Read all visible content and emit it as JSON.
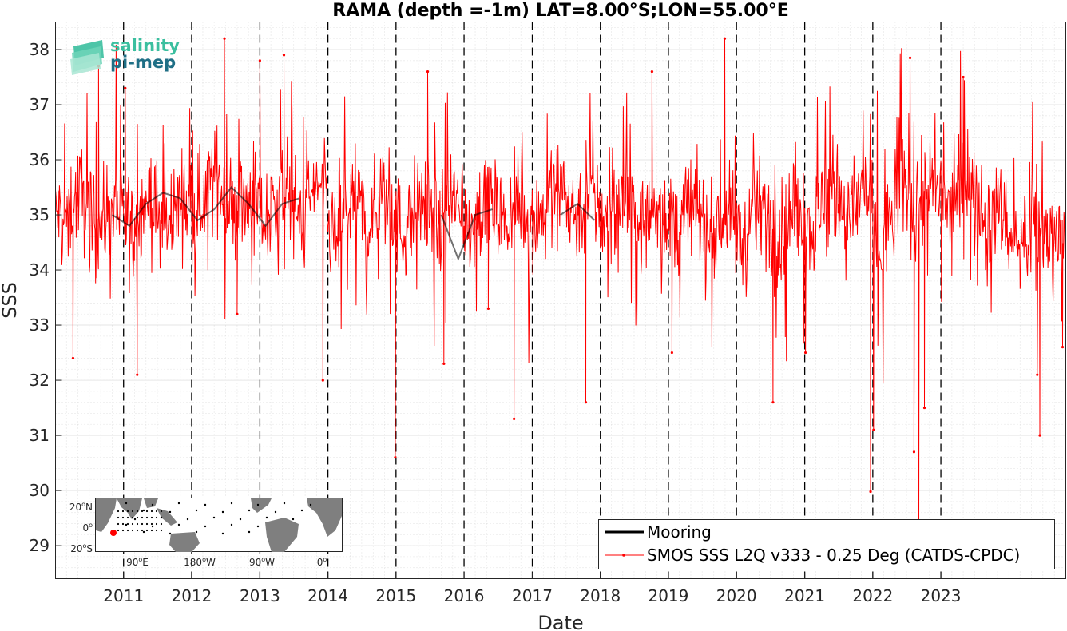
{
  "chart_data": {
    "type": "line",
    "title": "RAMA (depth =-1m) LAT=8.00°S;LON=55.00°E",
    "xlabel": "Date",
    "ylabel": "SSS",
    "xlim": [
      "2010-01-01",
      "2024-11-01"
    ],
    "ylim": [
      28.4,
      38.5
    ],
    "x_tick_labels": [
      "2011",
      "2012",
      "2013",
      "2014",
      "2015",
      "2016",
      "2017",
      "2018",
      "2019",
      "2020",
      "2021",
      "2022",
      "2023"
    ],
    "y_tick_labels": [
      "29",
      "30",
      "31",
      "32",
      "33",
      "34",
      "35",
      "36",
      "37",
      "38"
    ],
    "year_boundaries_dashed": true,
    "grid": "minor dotted",
    "legend_position": "bottom-right",
    "series": [
      {
        "name": "Mooring",
        "color": "#000000",
        "points": [
          [
            "2010-11-01",
            35.0
          ],
          [
            "2011-02-01",
            34.8
          ],
          [
            "2011-05-01",
            35.2
          ],
          [
            "2011-08-01",
            35.4
          ],
          [
            "2011-11-01",
            35.3
          ],
          [
            "2012-02-01",
            34.9
          ],
          [
            "2012-05-01",
            35.1
          ],
          [
            "2012-08-01",
            35.5
          ],
          [
            "2012-11-01",
            35.2
          ],
          [
            "2013-02-01",
            34.8
          ],
          [
            "2013-05-01",
            35.2
          ],
          [
            "2013-08-01",
            35.3
          ],
          [
            "2015-09-01",
            35.0
          ],
          [
            "2015-12-01",
            34.2
          ],
          [
            "2016-03-01",
            35.0
          ],
          [
            "2016-06-01",
            35.1
          ],
          [
            "2017-06-01",
            35.0
          ],
          [
            "2017-09-01",
            35.2
          ],
          [
            "2017-12-01",
            34.9
          ]
        ]
      },
      {
        "name": "SMOS SSS L2Q v333 - 0.25 Deg (CATDS-CPDC)",
        "color": "#ff0000",
        "marker": "dot",
        "monthly_mean": [
          {
            "year": 2010,
            "values": [
              35.0,
              34.9,
              35.1,
              35.3,
              35.4,
              35.2,
              34.9,
              34.8,
              34.9,
              35.1,
              35.2,
              35.0
            ]
          },
          {
            "year": 2011,
            "values": [
              34.8,
              34.7,
              35.0,
              35.2,
              35.3,
              35.1,
              34.9,
              34.8,
              35.0,
              35.2,
              35.3,
              35.1
            ]
          },
          {
            "year": 2012,
            "values": [
              35.0,
              35.2,
              35.4,
              35.6,
              35.7,
              35.5,
              35.2,
              35.0,
              35.1,
              35.3,
              35.4,
              35.2
            ]
          },
          {
            "year": 2013,
            "values": [
              34.9,
              35.0,
              35.2,
              35.4,
              35.5,
              35.4,
              35.1,
              35.0,
              35.2,
              35.4,
              35.5,
              35.3
            ]
          },
          {
            "year": 2014,
            "values": [
              34.8,
              34.6,
              34.9,
              35.1,
              35.3,
              35.2,
              35.0,
              34.9,
              35.0,
              35.2,
              35.2,
              35.0
            ]
          },
          {
            "year": 2015,
            "values": [
              34.8,
              34.7,
              34.9,
              35.1,
              35.3,
              35.2,
              35.0,
              34.8,
              35.0,
              35.1,
              35.2,
              35.0
            ]
          },
          {
            "year": 2016,
            "values": [
              34.9,
              34.8,
              35.0,
              35.2,
              35.3,
              35.2,
              35.0,
              34.9,
              35.0,
              35.1,
              35.2,
              35.0
            ]
          },
          {
            "year": 2017,
            "values": [
              34.9,
              35.0,
              35.2,
              35.5,
              35.6,
              35.4,
              35.2,
              35.0,
              35.1,
              35.2,
              35.3,
              35.1
            ]
          },
          {
            "year": 2018,
            "values": [
              34.9,
              34.8,
              35.0,
              35.2,
              35.3,
              35.1,
              34.9,
              34.8,
              35.0,
              35.1,
              35.2,
              35.0
            ]
          },
          {
            "year": 2019,
            "values": [
              34.8,
              34.7,
              34.9,
              35.1,
              35.2,
              35.0,
              34.8,
              34.7,
              34.8,
              34.9,
              35.0,
              34.9
            ]
          },
          {
            "year": 2020,
            "values": [
              34.6,
              34.5,
              34.8,
              35.0,
              35.1,
              35.0,
              34.8,
              34.6,
              34.8,
              35.0,
              35.0,
              34.8
            ]
          },
          {
            "year": 2021,
            "values": [
              34.8,
              34.7,
              35.0,
              35.3,
              35.5,
              35.4,
              35.2,
              35.0,
              35.1,
              35.3,
              35.4,
              35.2
            ]
          },
          {
            "year": 2022,
            "values": [
              34.5,
              34.3,
              34.7,
              35.1,
              35.4,
              35.5,
              35.3,
              35.1,
              35.2,
              35.4,
              35.5,
              35.3
            ]
          },
          {
            "year": 2023,
            "values": [
              35.2,
              35.1,
              35.3,
              35.5,
              35.6,
              35.4,
              35.1,
              34.9,
              34.9,
              35.0,
              35.1,
              34.9
            ]
          },
          {
            "year": 2024,
            "values": [
              34.6,
              34.4,
              34.5,
              34.7,
              34.9,
              34.8,
              34.6,
              34.6,
              34.7,
              34.8
            ]
          }
        ],
        "extremes": [
          [
            "2010-04-05",
            32.4
          ],
          [
            "2010-08-20",
            37.7
          ],
          [
            "2011-01-10",
            37.3
          ],
          [
            "2011-03-15",
            32.1
          ],
          [
            "2012-06-25",
            38.2
          ],
          [
            "2012-09-01",
            33.2
          ],
          [
            "2013-01-01",
            37.8
          ],
          [
            "2013-05-10",
            37.9
          ],
          [
            "2013-12-05",
            32.0
          ],
          [
            "2014-12-28",
            30.6
          ],
          [
            "2015-06-20",
            37.6
          ],
          [
            "2015-09-15",
            32.3
          ],
          [
            "2016-05-10",
            33.3
          ],
          [
            "2016-09-25",
            31.3
          ],
          [
            "2017-10-15",
            31.6
          ],
          [
            "2018-10-05",
            37.6
          ],
          [
            "2019-01-20",
            32.5
          ],
          [
            "2019-10-30",
            38.2
          ],
          [
            "2020-07-15",
            31.6
          ],
          [
            "2021-01-05",
            32.5
          ],
          [
            "2021-12-20",
            29.98
          ],
          [
            "2022-01-05",
            31.1
          ],
          [
            "2022-07-20",
            37.85
          ],
          [
            "2022-08-10",
            30.7
          ],
          [
            "2022-09-05",
            29.2
          ],
          [
            "2022-10-05",
            31.5
          ],
          [
            "2023-05-01",
            37.5
          ],
          [
            "2024-06-15",
            31.0
          ],
          [
            "2024-06-01",
            32.1
          ],
          [
            "2024-10-15",
            32.6
          ]
        ]
      }
    ],
    "legend": [
      "Mooring",
      "SMOS SSS L2Q v333 - 0.25 Deg (CATDS-CPDC)"
    ]
  },
  "logo": {
    "line1": "salinity",
    "line2": "pi-mep"
  },
  "inset_map": {
    "lat_labels": [
      {
        "deg": "20",
        "sup": "o",
        "hem": "N"
      },
      {
        "deg": "0",
        "sup": "o",
        "hem": ""
      },
      {
        "deg": "20",
        "sup": "o",
        "hem": "S"
      }
    ],
    "lon_labels": [
      {
        "deg": "90",
        "sup": "o",
        "hem": "E"
      },
      {
        "deg": "180",
        "sup": "o",
        "hem": "W"
      },
      {
        "deg": "90",
        "sup": "o",
        "hem": "W"
      },
      {
        "deg": "0",
        "sup": "o",
        "hem": ""
      }
    ],
    "location_marker_color": "#ff0000",
    "land_color": "#7f7f7f",
    "ocean_color": "#ffffff"
  }
}
